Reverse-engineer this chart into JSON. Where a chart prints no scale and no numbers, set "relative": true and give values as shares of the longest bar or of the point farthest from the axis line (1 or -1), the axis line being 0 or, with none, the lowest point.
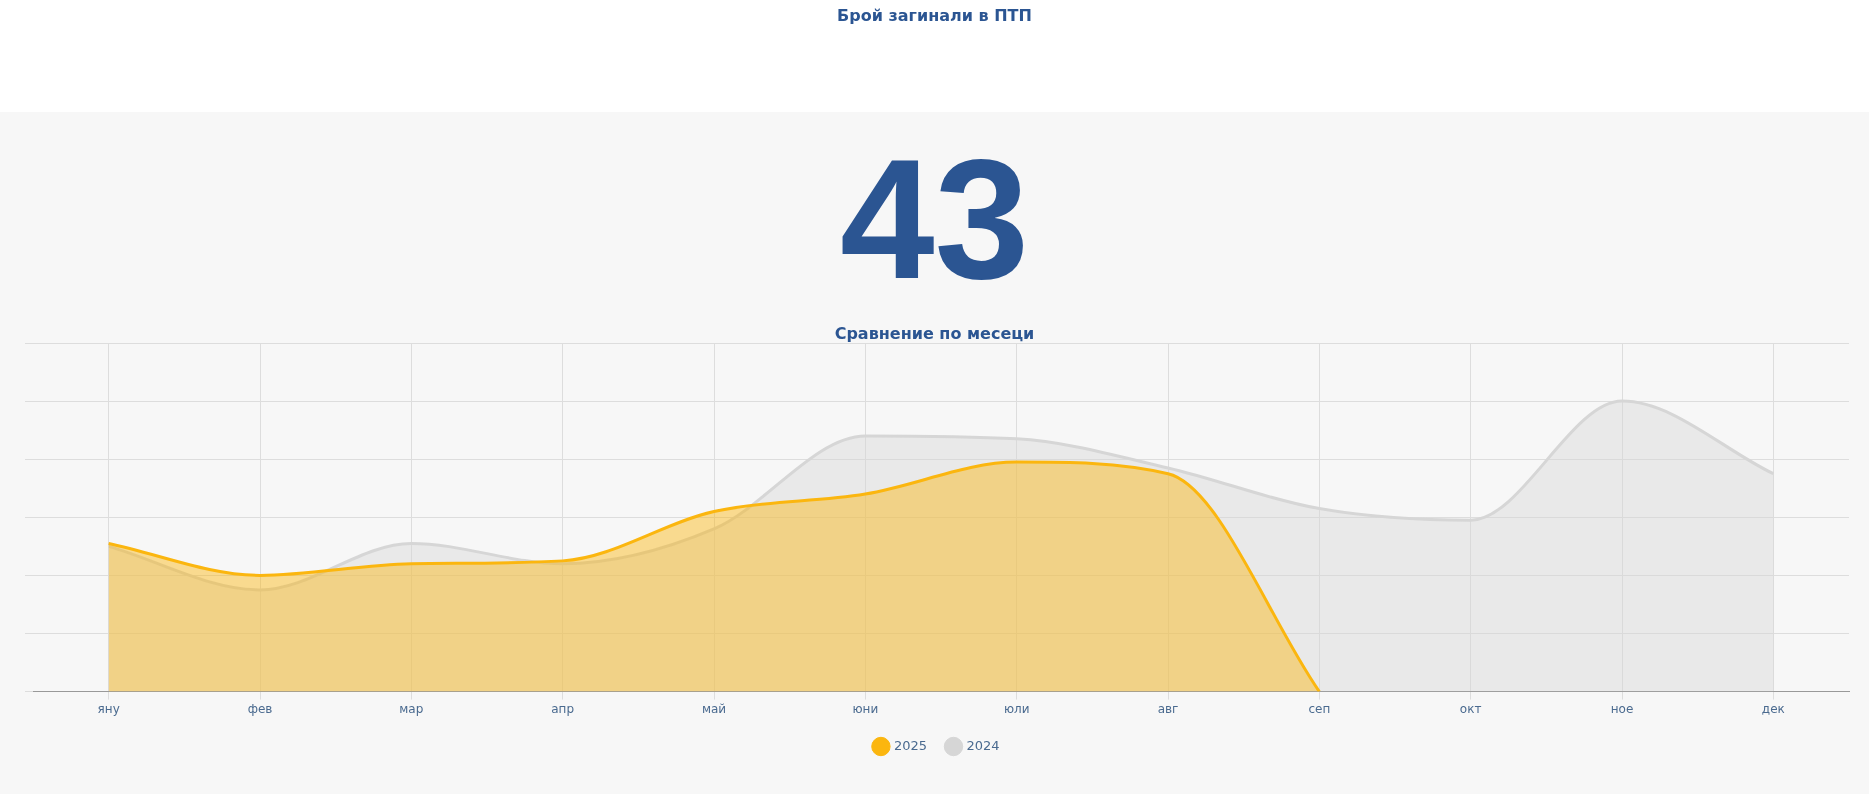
{
  "chart_data": {
    "type": "area",
    "title": "Брой загинали в ПТП",
    "subtitle": "Сравнение по месеци",
    "annotations": [
      "43"
    ],
    "categories": [
      "яну",
      "фев",
      "мар",
      "апр",
      "май",
      "юни",
      "юли",
      "авг",
      "сеп",
      "окт",
      "ное",
      "дек"
    ],
    "relative": true,
    "grid": true,
    "legend": "bottom",
    "marker": "none",
    "series": [
      {
        "name": "2025",
        "color": "#fbb60f",
        "values": [
          0.51,
          0.4,
          0.44,
          0.45,
          0.62,
          0.68,
          0.79,
          0.75,
          0,
          null,
          null,
          null
        ]
      },
      {
        "name": "2024",
        "color": "#d6d6d6",
        "values": [
          0.5,
          0.35,
          0.51,
          0.44,
          0.56,
          0.88,
          0.87,
          0.77,
          0.63,
          0.59,
          1,
          0.75
        ]
      }
    ]
  }
}
